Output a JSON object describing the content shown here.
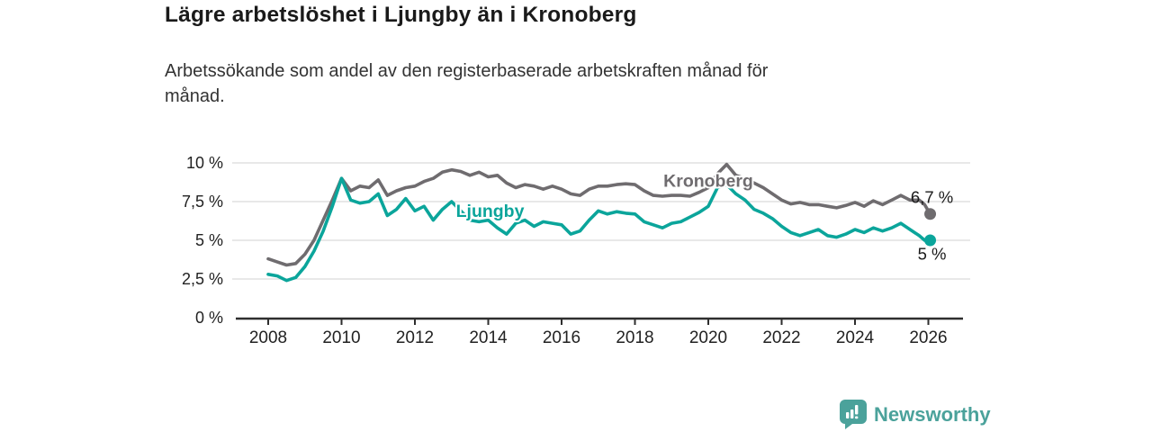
{
  "header": {
    "title": "Lägre arbetslöshet i Ljungby än i Kronoberg",
    "subtitle": "Arbetssökande som andel av den registerbaserade arbetskraften månad för\nmånad."
  },
  "branding": {
    "name": "Newsworthy",
    "logo_icon": "bar-chart-speech-bubble-icon",
    "brand_color": "#4ba29b"
  },
  "chart_data": {
    "type": "line",
    "title": "Lägre arbetslöshet i Ljungby än i Kronoberg",
    "subtitle": "Arbetssökande som andel av den registerbaserade arbetskraften månad för månad.",
    "xlabel": "",
    "ylabel": "",
    "ylim": [
      0,
      10.5
    ],
    "grid": "horizontal",
    "gridline_color": "#d9d9d9",
    "axis_color": "#2e2e2e",
    "tick_label_color": "#222222",
    "annotation_color": "#1a1a1a",
    "legend": "inline-labels-and-end-values",
    "xticks": [
      2008,
      2010,
      2012,
      2014,
      2016,
      2018,
      2020,
      2022,
      2024,
      2026
    ],
    "yticks": [
      {
        "value": 0,
        "label": "0 %"
      },
      {
        "value": 2.5,
        "label": "2,5 %"
      },
      {
        "value": 5,
        "label": "5 %"
      },
      {
        "value": 7.5,
        "label": "7,5 %"
      },
      {
        "value": 10,
        "label": "10 %"
      }
    ],
    "x": [
      2008,
      2008.25,
      2008.5,
      2008.75,
      2009,
      2009.25,
      2009.5,
      2009.75,
      2010,
      2010.25,
      2010.5,
      2010.75,
      2011,
      2011.25,
      2011.5,
      2011.75,
      2012,
      2012.25,
      2012.5,
      2012.75,
      2013,
      2013.25,
      2013.5,
      2013.75,
      2014,
      2014.25,
      2014.5,
      2014.75,
      2015,
      2015.25,
      2015.5,
      2015.75,
      2016,
      2016.25,
      2016.5,
      2016.75,
      2017,
      2017.25,
      2017.5,
      2017.75,
      2018,
      2018.25,
      2018.5,
      2018.75,
      2019,
      2019.25,
      2019.5,
      2019.75,
      2020,
      2020.25,
      2020.5,
      2020.75,
      2021,
      2021.25,
      2021.5,
      2021.75,
      2022,
      2022.25,
      2022.5,
      2022.75,
      2023,
      2023.25,
      2023.5,
      2023.75,
      2024,
      2024.25,
      2024.5,
      2024.75,
      2025,
      2025.25,
      2025.5,
      2025.75,
      2025.9,
      2026.05
    ],
    "series": [
      {
        "name": "Kronoberg",
        "color": "#6f6c6f",
        "line_width": 3.6,
        "end_label": "6,7 %",
        "end_value": 6.7,
        "label_anchor": {
          "x": 2020.0,
          "y": 8.85
        },
        "end_label_anchor": {
          "x": 2026.1,
          "y": 7.75
        },
        "values": [
          3.8,
          3.6,
          3.4,
          3.5,
          4.1,
          5.0,
          6.3,
          7.6,
          9.0,
          8.2,
          8.5,
          8.4,
          8.9,
          7.9,
          8.2,
          8.4,
          8.5,
          8.8,
          9.0,
          9.4,
          9.55,
          9.45,
          9.2,
          9.4,
          9.1,
          9.2,
          8.7,
          8.4,
          8.6,
          8.5,
          8.3,
          8.5,
          8.3,
          8.0,
          7.9,
          8.3,
          8.5,
          8.5,
          8.6,
          8.65,
          8.6,
          8.2,
          7.9,
          7.85,
          7.9,
          7.9,
          7.85,
          8.1,
          8.4,
          9.3,
          9.9,
          9.2,
          9.0,
          8.7,
          8.4,
          8.0,
          7.6,
          7.35,
          7.45,
          7.3,
          7.3,
          7.2,
          7.1,
          7.25,
          7.45,
          7.2,
          7.55,
          7.3,
          7.6,
          7.9,
          7.6,
          7.6,
          7.3,
          6.7
        ]
      },
      {
        "name": "Ljungby",
        "color": "#0ba59b",
        "line_width": 3.6,
        "end_label": "5 %",
        "end_value": 5.0,
        "label_anchor": {
          "x": 2014.05,
          "y": 6.9
        },
        "end_label_anchor": {
          "x": 2026.1,
          "y": 4.1
        },
        "values": [
          2.8,
          2.7,
          2.4,
          2.6,
          3.3,
          4.3,
          5.6,
          7.2,
          9.0,
          7.6,
          7.4,
          7.5,
          8.0,
          6.6,
          7.0,
          7.7,
          6.9,
          7.2,
          6.3,
          7.0,
          7.5,
          6.9,
          6.3,
          6.2,
          6.3,
          5.8,
          5.4,
          6.1,
          6.3,
          5.9,
          6.2,
          6.1,
          6.0,
          5.4,
          5.6,
          6.3,
          6.9,
          6.7,
          6.85,
          6.75,
          6.7,
          6.2,
          6.0,
          5.8,
          6.1,
          6.2,
          6.5,
          6.8,
          7.2,
          8.4,
          8.6,
          8.0,
          7.6,
          7.0,
          6.75,
          6.4,
          5.9,
          5.5,
          5.3,
          5.5,
          5.7,
          5.3,
          5.2,
          5.4,
          5.7,
          5.5,
          5.8,
          5.6,
          5.8,
          6.1,
          5.7,
          5.3,
          5.0,
          5.0
        ]
      }
    ]
  }
}
